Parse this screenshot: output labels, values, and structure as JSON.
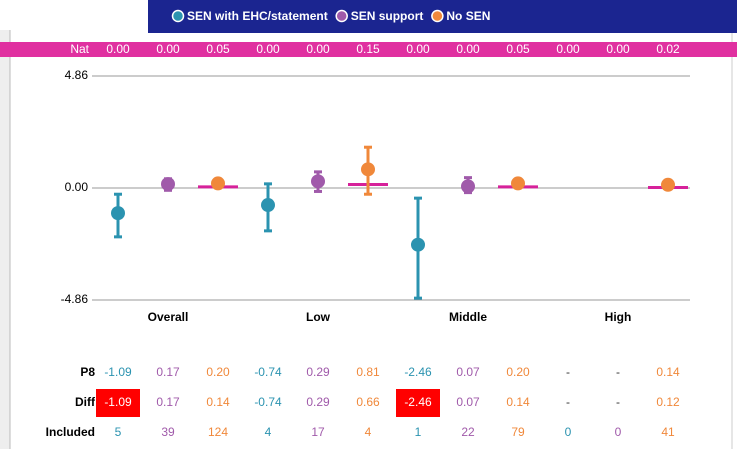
{
  "chart_data": {
    "type": "errorbar",
    "legend": [
      "SEN with EHC/statement",
      "SEN support",
      "No SEN"
    ],
    "nat": {
      "label": "Nat",
      "values": [
        0,
        0,
        0.05,
        0,
        0,
        0.15,
        0,
        0,
        0.05,
        0,
        0,
        0.02
      ],
      "value_labels": [
        "0.00",
        "0.00",
        "0.05",
        "0.00",
        "0.00",
        "0.15",
        "0.00",
        "0.00",
        "0.05",
        "0.00",
        "0.00",
        "0.02"
      ],
      "color": "#d6219a"
    },
    "categories": [
      "Overall",
      "Low",
      "Middle",
      "High"
    ],
    "ylim": [
      -4.86,
      4.86
    ],
    "yticks": [
      {
        "value": 4.86,
        "label": "4.86"
      },
      {
        "value": 0,
        "label": "0.00"
      },
      {
        "value": -4.86,
        "label": "-4.86"
      }
    ],
    "grid": true,
    "series": [
      {
        "name": "SEN with EHC/statement",
        "color": "#2b93b0",
        "values": [
          -1.09,
          -0.74,
          -2.46,
          null
        ],
        "lower": [
          -2.12,
          -1.86,
          -4.78,
          null
        ],
        "upper": [
          -0.27,
          0.18,
          -0.44,
          null
        ],
        "value_labels": [
          "-1.09",
          "-0.74",
          "-2.46",
          "-"
        ]
      },
      {
        "name": "SEN support",
        "color": "#a05aaa",
        "values": [
          0.17,
          0.29,
          0.07,
          null
        ],
        "lower": [
          -0.1,
          -0.15,
          -0.2,
          null
        ],
        "upper": [
          0.4,
          0.7,
          0.45,
          null
        ],
        "value_labels": [
          "0.17",
          "0.29",
          "0.07",
          "-"
        ]
      },
      {
        "name": "No SEN",
        "color": "#f0883a",
        "values": [
          0.2,
          0.81,
          0.2,
          0.14
        ],
        "lower": [
          0.1,
          -0.27,
          0.1,
          0.05
        ],
        "upper": [
          0.3,
          1.77,
          0.3,
          0.23
        ],
        "value_labels": [
          "0.20",
          "0.81",
          "0.20",
          "0.14"
        ]
      }
    ],
    "p8_label": "P8",
    "diff": {
      "label": "Diff",
      "values": [
        "-1.09",
        "0.17",
        "0.14",
        "-0.74",
        "0.29",
        "0.66",
        "-2.46",
        "0.07",
        "0.14",
        "-",
        "-",
        "0.12"
      ],
      "highlighted": [
        0,
        6
      ],
      "highlight_color": "#ff0000"
    },
    "included": {
      "label": "Included",
      "values": [
        5,
        39,
        124,
        4,
        17,
        4,
        1,
        22,
        79,
        0,
        0,
        41
      ]
    }
  }
}
